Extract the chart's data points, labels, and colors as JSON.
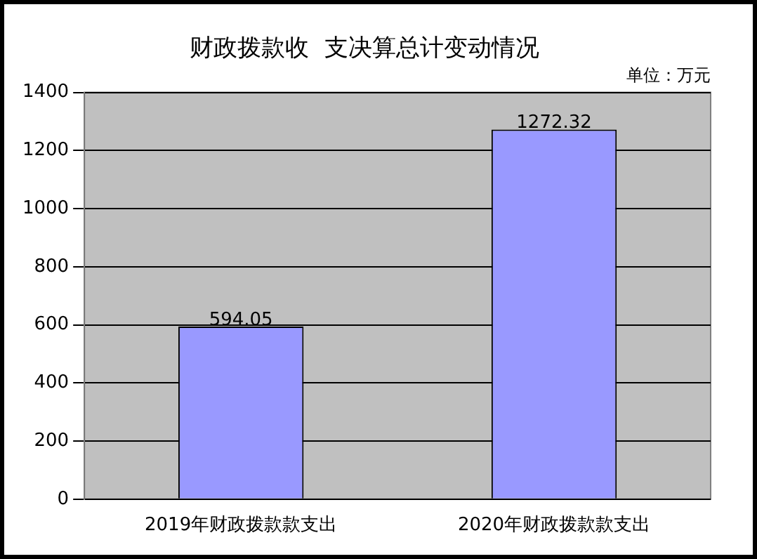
{
  "chart_data": {
    "type": "bar",
    "title": "财政拨款收  支决算总计变动情况",
    "subtitle": "单位：万元",
    "categories": [
      "2019年财政拨款款支出",
      "2020年财政拨款款支出"
    ],
    "values": [
      594.05,
      1272.32
    ],
    "color": "#9999ff",
    "ylim": [
      0,
      1400
    ],
    "yticks": [
      0,
      200,
      400,
      600,
      800,
      1000,
      1200,
      1400
    ],
    "grid": "y",
    "data_labels": true,
    "legend": false
  }
}
